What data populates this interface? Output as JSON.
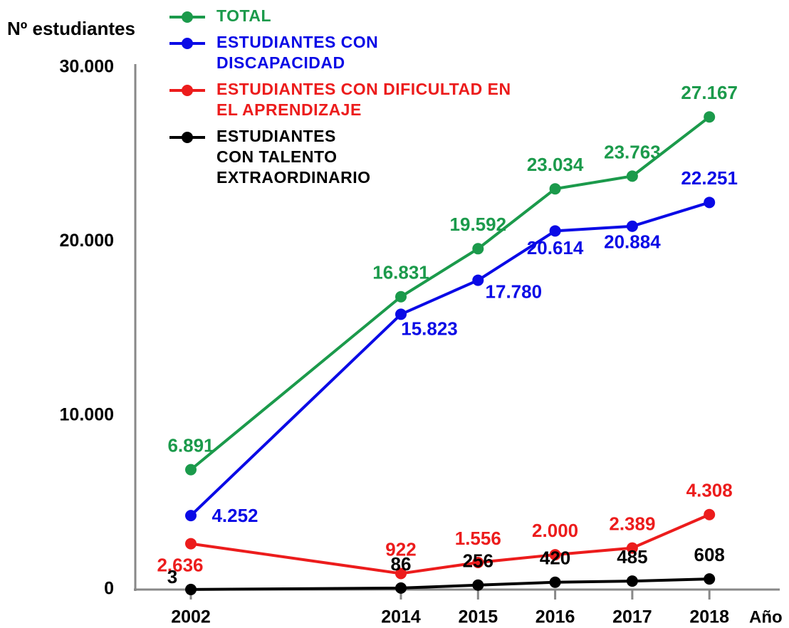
{
  "chart_data": {
    "type": "line",
    "y_label": "Nº estudiantes",
    "x_label": "Año",
    "categories": [
      "2002",
      "2014",
      "2015",
      "2016",
      "2017",
      "2018"
    ],
    "ylim": [
      0,
      30000
    ],
    "yticks": [
      0,
      {
        "value": 10000,
        "label": "10.000"
      },
      {
        "value": 20000,
        "label": "20.000"
      },
      {
        "value": 30000,
        "label": "30.000"
      }
    ],
    "series": [
      {
        "name": "TOTAL",
        "color": "#1b9a4b",
        "values": [
          6891,
          16831,
          19592,
          23034,
          23763,
          27167
        ],
        "value_labels": [
          "6.891",
          "16.831",
          "19.592",
          "23.034",
          "23.763",
          "27.167"
        ]
      },
      {
        "name": "ESTUDIANTES CON DISCAPACIDAD",
        "color": "#0a0ae6",
        "values": [
          4252,
          15823,
          17780,
          20614,
          20884,
          22251
        ],
        "value_labels": [
          "4.252",
          "15.823",
          "17.780",
          "20.614",
          "20.884",
          "22.251"
        ]
      },
      {
        "name": "ESTUDIANTES CON DIFICULTAD EN EL APRENDIZAJE",
        "color": "#ec1c1c",
        "values": [
          2636,
          922,
          1556,
          2000,
          2389,
          4308
        ],
        "value_labels": [
          "2.636",
          "922",
          "1.556",
          "2.000",
          "2.389",
          "4.308"
        ]
      },
      {
        "name": "ESTUDIANTES CON TALENTO EXTRAORDINARIO",
        "color": "#000000",
        "values": [
          3,
          86,
          256,
          420,
          485,
          608
        ]
      }
    ]
  }
}
